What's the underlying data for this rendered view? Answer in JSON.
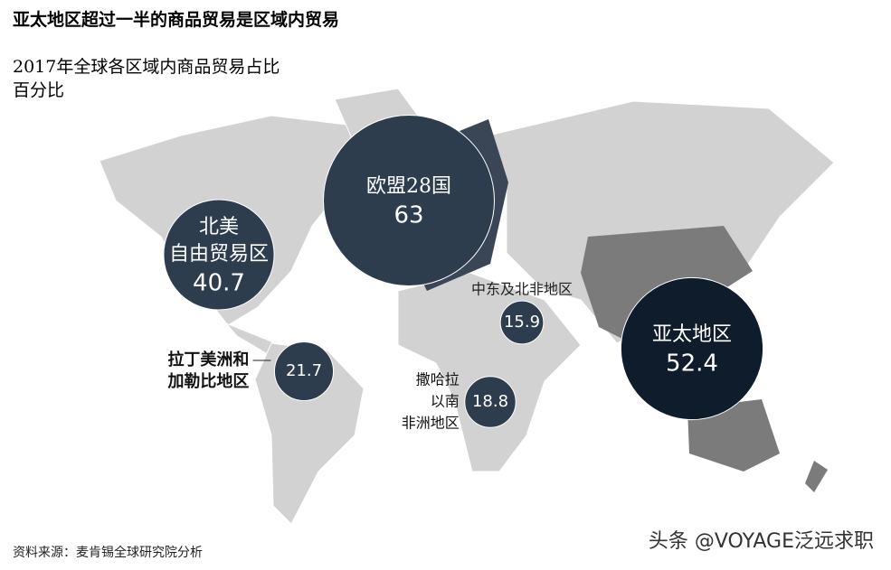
{
  "chart_data": {
    "type": "bubble",
    "title": "亚太地区超过一半的商品贸易是区域内贸易",
    "subtitle": "2017年全球各区域内商品贸易占比",
    "unit": "百分比",
    "source": "资料来源：麦肯锡全球研究院分析",
    "watermark": "头条 @VOYAGE泛远求职",
    "categories": [
      [
        "北美",
        "自由贸易区"
      ],
      [
        "欧盟28国"
      ],
      [
        "中东及北非地区"
      ],
      [
        "亚太地区"
      ],
      [
        "拉丁美洲和",
        "加勒比地区"
      ],
      [
        "撒哈拉",
        "以南",
        "非洲地区"
      ]
    ],
    "values": [
      40.7,
      63,
      15.9,
      52.4,
      21.7,
      18.8
    ],
    "colors": [
      "#2e3d4e",
      "#2e3d4e",
      "#2e3d4e",
      "#0e1c2b",
      "#2e3d4e",
      "#2e3d4e"
    ]
  }
}
